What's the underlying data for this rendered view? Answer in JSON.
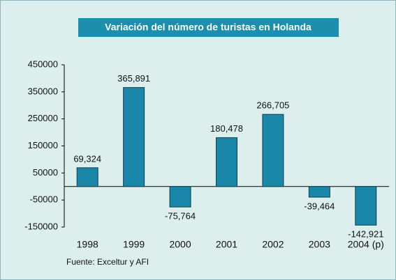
{
  "chart_data": {
    "type": "bar",
    "title": "Variación del número de turistas en Holanda",
    "source": "Fuente: Exceltur y AFI",
    "categories": [
      "1998",
      "1999",
      "2000",
      "2001",
      "2002",
      "2003",
      "2004 (p)"
    ],
    "values": [
      69324,
      365891,
      -75764,
      180478,
      266705,
      -39464,
      -142921
    ],
    "value_labels": [
      "69,324",
      "365,891",
      "-75,764",
      "180,478",
      "266,705",
      "-39,464",
      "-142,921"
    ],
    "color": "#1a87a8",
    "ylim": [
      -150000,
      450000
    ],
    "yticks": [
      -150000,
      -50000,
      50000,
      150000,
      250000,
      350000,
      450000
    ]
  }
}
